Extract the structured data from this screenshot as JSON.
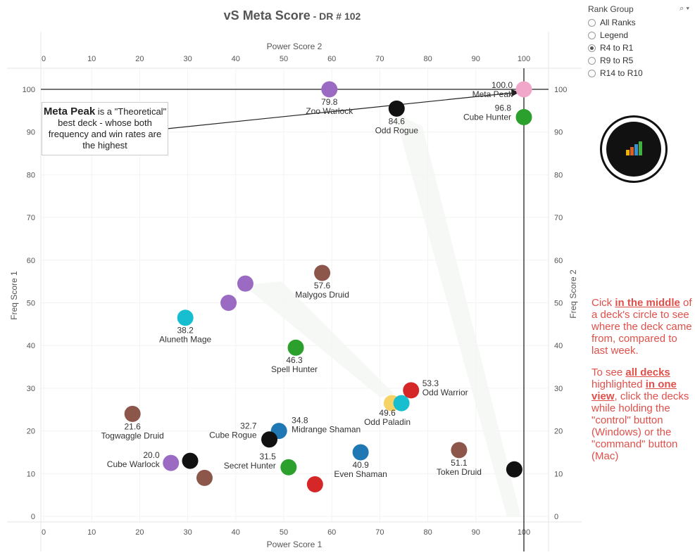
{
  "header": {
    "title": "vS Meta Score",
    "subtitle": " - DR # 102"
  },
  "rank_filter": {
    "title": "Rank Group",
    "options": [
      "All Ranks",
      "Legend",
      "R4 to R1",
      "R9 to R5",
      "R14 to R10"
    ],
    "selected": "R4 to R1"
  },
  "annotation": {
    "bold": "Meta Peak",
    "text": " is a \"Theoretical\" best deck - whose both frequency and win rates are the highest"
  },
  "instructions": {
    "p1_pre": "Cick ",
    "p1_link": "in the middle",
    "p1_post": " of a deck's circle to see where the deck came from, compared to last week.",
    "p2_pre": "To see ",
    "p2_link1": "all decks ",
    "p2_mid": " highlighted ",
    "p2_link2": "in one view",
    "p2_post": ", click the decks while holding the \"control\" button (Windows) or the \"command\" button (Mac)"
  },
  "colors": {
    "pink": "#f1a7c9",
    "purple": "#9b6bc4",
    "black": "#111111",
    "green": "#2ca02c",
    "brown": "#8c564b",
    "cyan": "#17becf",
    "blue": "#1f77b4",
    "red": "#d62728",
    "yellow": "#f6d365",
    "note": "#e0504a",
    "logo_bar": "#f0b400"
  },
  "chart_data": {
    "type": "scatter",
    "xlabel": "Power Score 1",
    "ylabel": "Freq Score 1",
    "x2label": "Power Score 2",
    "y2label": "Freq Score 2",
    "xlim": [
      0,
      100
    ],
    "ylim": [
      0,
      100
    ],
    "xticks": [
      0,
      10,
      20,
      30,
      40,
      50,
      60,
      70,
      80,
      90,
      100
    ],
    "yticks": [
      0,
      10,
      20,
      30,
      40,
      50,
      60,
      70,
      80,
      90,
      100
    ],
    "reference_lines": {
      "x": 100,
      "y": 100
    },
    "points": [
      {
        "x": 100,
        "y": 100,
        "score": "100.0",
        "name": "Meta Peak",
        "color": "pink"
      },
      {
        "x": 59.5,
        "y": 100,
        "score": "79.8",
        "name": "Zoo Warlock",
        "color": "purple"
      },
      {
        "x": 73.5,
        "y": 95.5,
        "score": "84.6",
        "name": "Odd Rogue",
        "color": "black"
      },
      {
        "x": 100,
        "y": 93.5,
        "score": "96.8",
        "name": "Cube Hunter",
        "color": "green"
      },
      {
        "x": 58,
        "y": 57,
        "score": "57.6",
        "name": "Malygos Druid",
        "color": "brown"
      },
      {
        "x": 42,
        "y": 54.5,
        "score": "",
        "name": "",
        "color": "purple"
      },
      {
        "x": 38.5,
        "y": 50,
        "score": "",
        "name": "",
        "color": "purple"
      },
      {
        "x": 29.5,
        "y": 46.5,
        "score": "38.2",
        "name": "Aluneth Mage",
        "color": "cyan"
      },
      {
        "x": 52.5,
        "y": 39.5,
        "score": "46.3",
        "name": "Spell Hunter",
        "color": "green"
      },
      {
        "x": 76.5,
        "y": 29.5,
        "score": "53.3",
        "name": "Odd Warrior",
        "color": "red"
      },
      {
        "x": 72.5,
        "y": 26.5,
        "score": "",
        "name": "",
        "color": "yellow"
      },
      {
        "x": 74.5,
        "y": 26.5,
        "score": "49.6",
        "name": "Odd Paladin",
        "color": "cyan"
      },
      {
        "x": 18.5,
        "y": 24,
        "score": "21.6",
        "name": "Togwaggle Druid",
        "color": "brown"
      },
      {
        "x": 49,
        "y": 20,
        "score": "34.8",
        "name": "Midrange Shaman",
        "color": "blue"
      },
      {
        "x": 47,
        "y": 18,
        "score": "32.7",
        "name": "Cube Rogue",
        "color": "black"
      },
      {
        "x": 66,
        "y": 15,
        "score": "40.9",
        "name": "Even Shaman",
        "color": "blue"
      },
      {
        "x": 86.5,
        "y": 15.5,
        "score": "51.1",
        "name": "Token Druid",
        "color": "brown"
      },
      {
        "x": 26.5,
        "y": 12.5,
        "score": "20.0",
        "name": "Cube Warlock",
        "color": "purple"
      },
      {
        "x": 30.5,
        "y": 13,
        "score": "",
        "name": "",
        "color": "black"
      },
      {
        "x": 33.5,
        "y": 9,
        "score": "",
        "name": "",
        "color": "brown"
      },
      {
        "x": 51,
        "y": 11.5,
        "score": "31.5",
        "name": "Secret Hunter",
        "color": "green"
      },
      {
        "x": 56.5,
        "y": 7.5,
        "score": "",
        "name": "",
        "color": "red"
      },
      {
        "x": 98,
        "y": 11,
        "score": "",
        "name": "",
        "color": "black"
      }
    ]
  }
}
